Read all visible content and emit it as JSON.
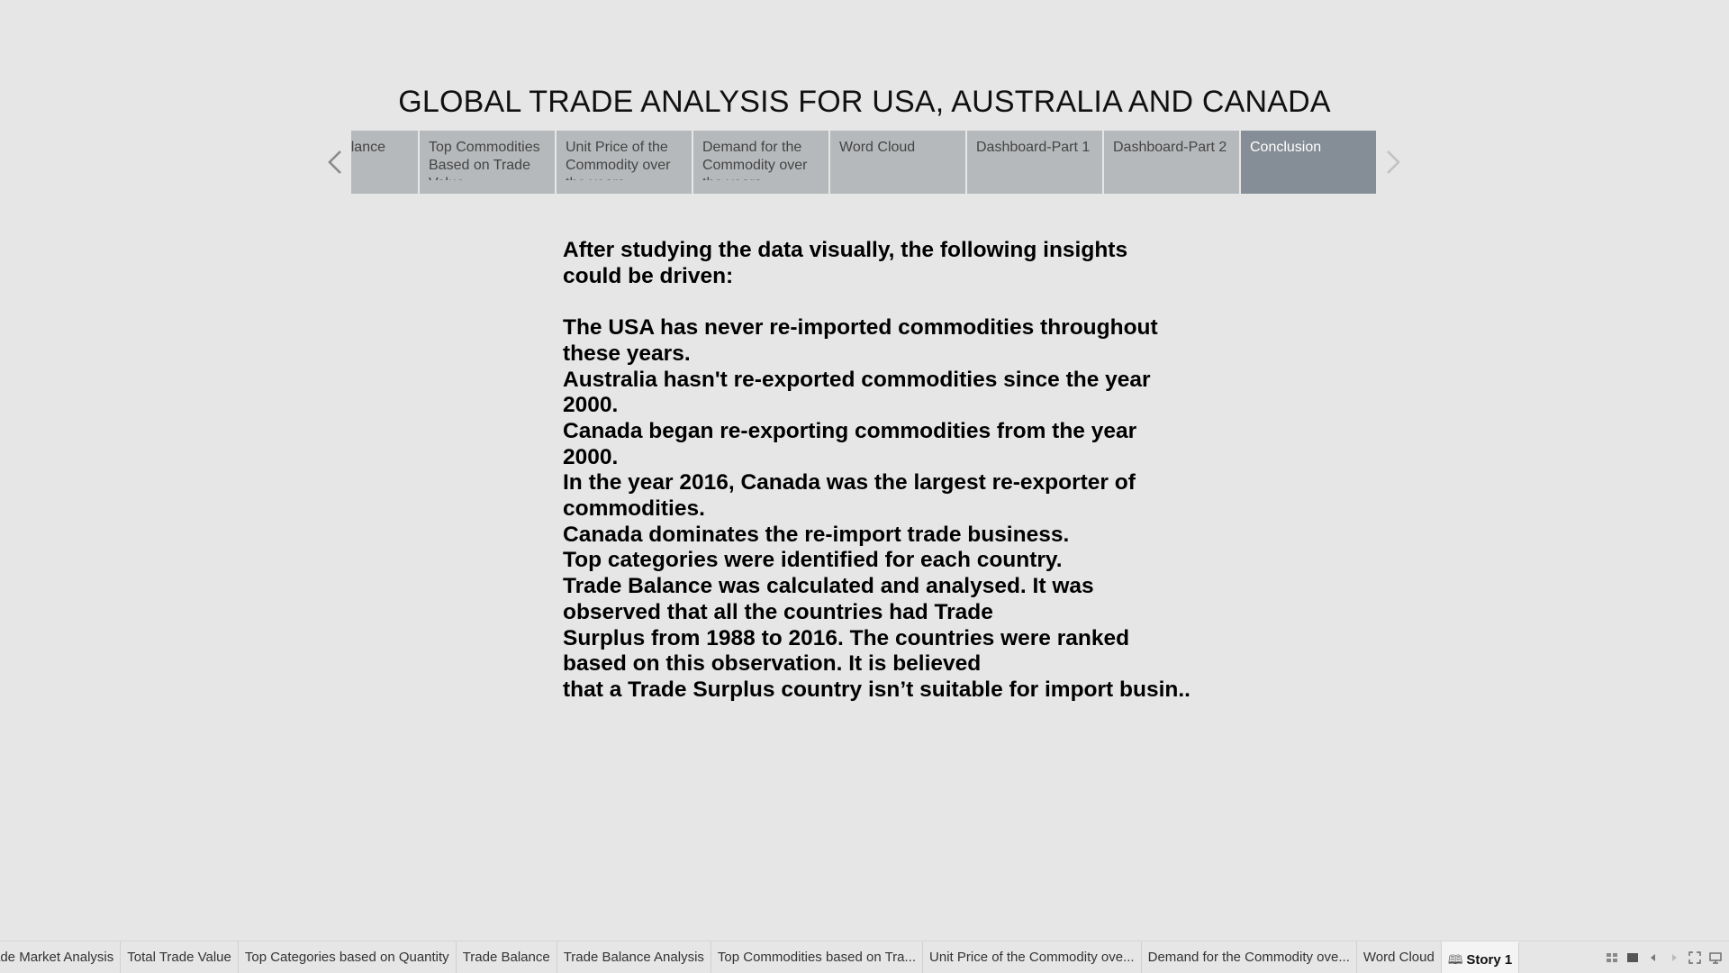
{
  "story": {
    "title": "GLOBAL TRADE ANALYSIS FOR USA, AUSTRALIA AND CANADA",
    "points": [
      {
        "label": "Trade Balance",
        "visible_text": "lance",
        "active": false
      },
      {
        "label": "Top Commodities Based on Trade Value",
        "active": false
      },
      {
        "label": "Unit Price of the Commodity over the years",
        "active": false
      },
      {
        "label": "Demand for the Commodity over the years",
        "active": false
      },
      {
        "label": "Word Cloud",
        "active": false
      },
      {
        "label": "Dashboard-Part 1",
        "active": false
      },
      {
        "label": "Dashboard-Part 2",
        "active": false
      },
      {
        "label": "Conclusion",
        "active": true
      }
    ],
    "nav": {
      "prev_icon": "chevron-left-icon",
      "next_icon": "chevron-right-icon"
    }
  },
  "content": {
    "intro": "After studying the data visually, the following insights could be driven:",
    "lines": [
      "The USA has never re-imported commodities throughout these years.",
      "Australia hasn't re-exported commodities since the year 2000.",
      "Canada began re-exporting commodities from the year 2000.",
      "In the year 2016, Canada was the largest re-exporter of commodities.",
      "Canada dominates the re-import trade business.",
      "Top categories were identified for each country.",
      "Trade Balance was calculated and analysed. It was observed that all the countries had Trade",
      "Surplus from 1988 to 2016. The countries were ranked based on this observation. It is believed",
      "that a Trade Surplus country isn’t suitable for import busin.."
    ]
  },
  "bottom_bar": {
    "tabs": [
      "ade Market Analysis",
      "Total Trade Value",
      "Top Categories based on Quantity",
      "Trade Balance",
      "Trade Balance Analysis",
      "Top Commodities based on Tra...",
      "Unit Price of the Commodity ove...",
      "Demand for the Commodity ove...",
      "Word Cloud"
    ],
    "active_tab": "Story 1",
    "active_tab_icon": "book-icon",
    "controls": [
      "sheet-sorter-icon",
      "filmstrip-icon",
      "prev-sheet-icon",
      "next-sheet-icon",
      "fullscreen-icon",
      "presentation-mode-icon"
    ]
  }
}
